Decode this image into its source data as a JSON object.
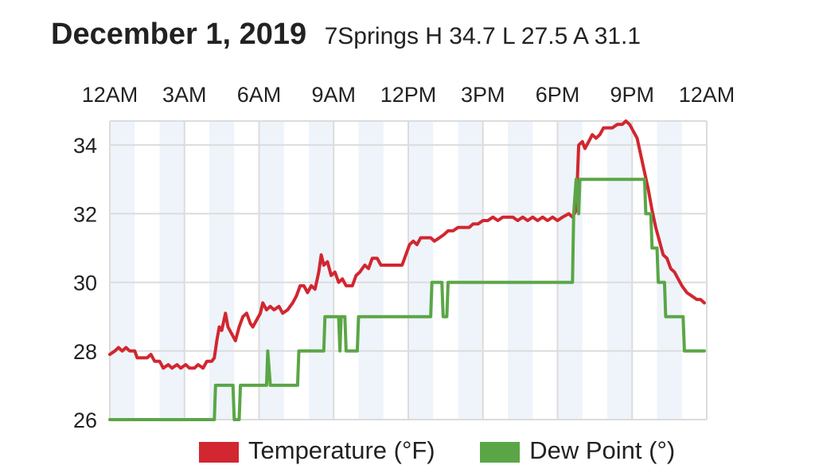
{
  "header": {
    "date": "December 1, 2019",
    "stats": "7Springs H 34.7 L 27.5 A 31.1"
  },
  "colors": {
    "temperature": "#d22630",
    "dew_point": "#5aa646",
    "band": "#eef4fa",
    "grid": "#dcdcdc"
  },
  "chart_data": {
    "type": "line",
    "x_tick_labels": [
      "12AM",
      "3AM",
      "6AM",
      "9AM",
      "12PM",
      "3PM",
      "6PM",
      "9PM",
      "12AM"
    ],
    "x_tick_hours": [
      0,
      3,
      6,
      9,
      12,
      15,
      18,
      21,
      24
    ],
    "y_tick_labels": [
      "26",
      "28",
      "30",
      "32",
      "34"
    ],
    "y_ticks": [
      26,
      28,
      30,
      32,
      34
    ],
    "xlim": [
      0,
      24
    ],
    "ylim": [
      26,
      34.7
    ],
    "grid": true,
    "legend_position": "bottom",
    "series": [
      {
        "name": "Temperature (°F)",
        "color": "#d22630",
        "points": [
          [
            0.0,
            27.9
          ],
          [
            0.2,
            28.0
          ],
          [
            0.35,
            28.1
          ],
          [
            0.5,
            28.0
          ],
          [
            0.65,
            28.1
          ],
          [
            0.8,
            28.0
          ],
          [
            1.0,
            28.0
          ],
          [
            1.1,
            27.8
          ],
          [
            1.3,
            27.8
          ],
          [
            1.5,
            27.8
          ],
          [
            1.65,
            27.9
          ],
          [
            1.8,
            27.7
          ],
          [
            2.0,
            27.7
          ],
          [
            2.15,
            27.5
          ],
          [
            2.35,
            27.6
          ],
          [
            2.5,
            27.5
          ],
          [
            2.7,
            27.6
          ],
          [
            2.85,
            27.5
          ],
          [
            3.05,
            27.6
          ],
          [
            3.2,
            27.5
          ],
          [
            3.4,
            27.5
          ],
          [
            3.55,
            27.6
          ],
          [
            3.75,
            27.5
          ],
          [
            3.9,
            27.7
          ],
          [
            4.1,
            27.7
          ],
          [
            4.2,
            27.8
          ],
          [
            4.3,
            28.3
          ],
          [
            4.4,
            28.7
          ],
          [
            4.5,
            28.6
          ],
          [
            4.65,
            29.1
          ],
          [
            4.75,
            28.7
          ],
          [
            4.9,
            28.5
          ],
          [
            5.05,
            28.3
          ],
          [
            5.2,
            28.7
          ],
          [
            5.35,
            29.0
          ],
          [
            5.5,
            29.1
          ],
          [
            5.65,
            28.8
          ],
          [
            5.75,
            28.7
          ],
          [
            5.9,
            28.9
          ],
          [
            6.05,
            29.1
          ],
          [
            6.15,
            29.4
          ],
          [
            6.3,
            29.2
          ],
          [
            6.45,
            29.3
          ],
          [
            6.6,
            29.2
          ],
          [
            6.8,
            29.3
          ],
          [
            6.95,
            29.1
          ],
          [
            7.15,
            29.2
          ],
          [
            7.35,
            29.4
          ],
          [
            7.5,
            29.6
          ],
          [
            7.65,
            29.9
          ],
          [
            7.8,
            29.9
          ],
          [
            7.95,
            29.7
          ],
          [
            8.1,
            29.9
          ],
          [
            8.25,
            29.8
          ],
          [
            8.4,
            30.3
          ],
          [
            8.5,
            30.8
          ],
          [
            8.6,
            30.5
          ],
          [
            8.75,
            30.6
          ],
          [
            8.9,
            30.2
          ],
          [
            9.05,
            30.3
          ],
          [
            9.2,
            30.0
          ],
          [
            9.35,
            30.1
          ],
          [
            9.5,
            29.9
          ],
          [
            9.75,
            29.9
          ],
          [
            9.9,
            30.2
          ],
          [
            10.05,
            30.3
          ],
          [
            10.25,
            30.5
          ],
          [
            10.4,
            30.4
          ],
          [
            10.55,
            30.7
          ],
          [
            10.75,
            30.7
          ],
          [
            10.9,
            30.5
          ],
          [
            11.2,
            30.5
          ],
          [
            11.5,
            30.5
          ],
          [
            11.75,
            30.5
          ],
          [
            11.9,
            30.8
          ],
          [
            12.05,
            31.1
          ],
          [
            12.2,
            31.2
          ],
          [
            12.35,
            31.1
          ],
          [
            12.5,
            31.3
          ],
          [
            12.7,
            31.3
          ],
          [
            12.9,
            31.3
          ],
          [
            13.05,
            31.2
          ],
          [
            13.25,
            31.3
          ],
          [
            13.45,
            31.4
          ],
          [
            13.6,
            31.5
          ],
          [
            13.8,
            31.5
          ],
          [
            14.0,
            31.6
          ],
          [
            14.2,
            31.6
          ],
          [
            14.45,
            31.6
          ],
          [
            14.6,
            31.7
          ],
          [
            14.8,
            31.7
          ],
          [
            15.0,
            31.8
          ],
          [
            15.2,
            31.8
          ],
          [
            15.4,
            31.9
          ],
          [
            15.6,
            31.8
          ],
          [
            15.8,
            31.9
          ],
          [
            16.0,
            31.9
          ],
          [
            16.2,
            31.9
          ],
          [
            16.4,
            31.8
          ],
          [
            16.6,
            31.9
          ],
          [
            16.8,
            31.8
          ],
          [
            17.0,
            31.9
          ],
          [
            17.2,
            31.8
          ],
          [
            17.4,
            31.9
          ],
          [
            17.6,
            31.8
          ],
          [
            17.8,
            31.9
          ],
          [
            18.0,
            31.8
          ],
          [
            18.2,
            31.9
          ],
          [
            18.45,
            32.0
          ],
          [
            18.6,
            31.9
          ],
          [
            18.75,
            32.1
          ],
          [
            18.85,
            34.0
          ],
          [
            19.0,
            34.1
          ],
          [
            19.1,
            33.9
          ],
          [
            19.25,
            34.1
          ],
          [
            19.4,
            34.3
          ],
          [
            19.55,
            34.2
          ],
          [
            19.7,
            34.3
          ],
          [
            19.85,
            34.5
          ],
          [
            20.0,
            34.5
          ],
          [
            20.2,
            34.5
          ],
          [
            20.4,
            34.6
          ],
          [
            20.6,
            34.6
          ],
          [
            20.75,
            34.7
          ],
          [
            20.9,
            34.6
          ],
          [
            21.05,
            34.4
          ],
          [
            21.2,
            34.2
          ],
          [
            21.35,
            33.7
          ],
          [
            21.5,
            33.2
          ],
          [
            21.65,
            32.7
          ],
          [
            21.8,
            32.1
          ],
          [
            21.95,
            31.6
          ],
          [
            22.1,
            31.2
          ],
          [
            22.25,
            30.8
          ],
          [
            22.4,
            30.7
          ],
          [
            22.55,
            30.4
          ],
          [
            22.7,
            30.3
          ],
          [
            22.85,
            30.1
          ],
          [
            23.0,
            29.9
          ],
          [
            23.2,
            29.7
          ],
          [
            23.4,
            29.6
          ],
          [
            23.6,
            29.5
          ],
          [
            23.75,
            29.5
          ],
          [
            23.9,
            29.4
          ]
        ]
      },
      {
        "name": "Dew Point (°)",
        "color": "#5aa646",
        "points": [
          [
            0.0,
            26.0
          ],
          [
            4.2,
            26.0
          ],
          [
            4.25,
            27.0
          ],
          [
            4.95,
            27.0
          ],
          [
            5.0,
            26.0
          ],
          [
            5.2,
            26.0
          ],
          [
            5.25,
            27.0
          ],
          [
            6.3,
            27.0
          ],
          [
            6.35,
            28.0
          ],
          [
            6.45,
            27.0
          ],
          [
            7.55,
            27.0
          ],
          [
            7.6,
            28.0
          ],
          [
            8.6,
            28.0
          ],
          [
            8.65,
            29.0
          ],
          [
            9.2,
            29.0
          ],
          [
            9.25,
            28.0
          ],
          [
            9.3,
            29.0
          ],
          [
            9.45,
            29.0
          ],
          [
            9.5,
            28.0
          ],
          [
            9.95,
            28.0
          ],
          [
            10.0,
            29.0
          ],
          [
            12.9,
            29.0
          ],
          [
            12.95,
            30.0
          ],
          [
            13.35,
            30.0
          ],
          [
            13.4,
            29.0
          ],
          [
            13.55,
            29.0
          ],
          [
            13.6,
            30.0
          ],
          [
            18.6,
            30.0
          ],
          [
            18.65,
            32.0
          ],
          [
            18.75,
            33.0
          ],
          [
            18.85,
            32.0
          ],
          [
            18.9,
            33.0
          ],
          [
            20.55,
            33.0
          ],
          [
            21.0,
            33.0
          ],
          [
            21.5,
            33.0
          ],
          [
            21.55,
            32.0
          ],
          [
            21.75,
            32.0
          ],
          [
            21.8,
            31.0
          ],
          [
            22.0,
            31.0
          ],
          [
            22.05,
            30.0
          ],
          [
            22.3,
            30.0
          ],
          [
            22.35,
            29.0
          ],
          [
            23.05,
            29.0
          ],
          [
            23.1,
            28.0
          ],
          [
            23.9,
            28.0
          ]
        ]
      }
    ]
  }
}
